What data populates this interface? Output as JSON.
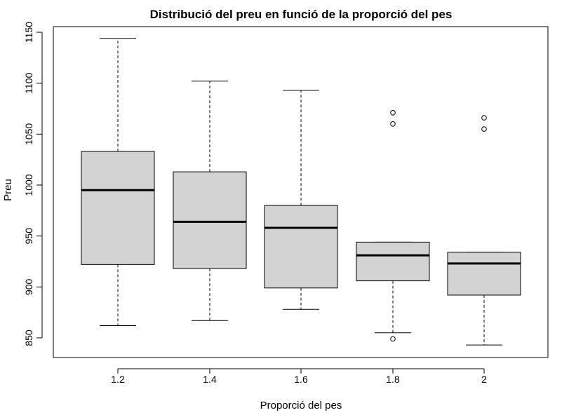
{
  "chart_data": {
    "type": "boxplot",
    "title": "Distribució del preu en funció de la proporció del pes",
    "xlabel": "Proporció del pes",
    "ylabel": "Preu",
    "ylim": [
      830,
      1160
    ],
    "yticks": [
      850,
      900,
      950,
      1000,
      1050,
      1100,
      1150
    ],
    "categories": [
      "1.2",
      "1.4",
      "1.6",
      "1.8",
      "2"
    ],
    "boxes": [
      {
        "category": "1.2",
        "whisker_low": 862,
        "q1": 922,
        "median": 995,
        "q3": 1033,
        "whisker_high": 1144,
        "outliers": []
      },
      {
        "category": "1.4",
        "whisker_low": 867,
        "q1": 918,
        "median": 964,
        "q3": 1013,
        "whisker_high": 1102,
        "outliers": []
      },
      {
        "category": "1.6",
        "whisker_low": 878,
        "q1": 899,
        "median": 958,
        "q3": 980,
        "whisker_high": 1093,
        "outliers": []
      },
      {
        "category": "1.8",
        "whisker_low": 855,
        "q1": 906,
        "median": 931,
        "q3": 944,
        "whisker_high": 944,
        "outliers": [
          849,
          1060,
          1071
        ]
      },
      {
        "category": "2",
        "whisker_low": 843,
        "q1": 892,
        "median": 923,
        "q3": 934,
        "whisker_high": 934,
        "outliers": [
          1055,
          1066
        ]
      }
    ],
    "box_fill": "#d3d3d3",
    "grid": false
  }
}
